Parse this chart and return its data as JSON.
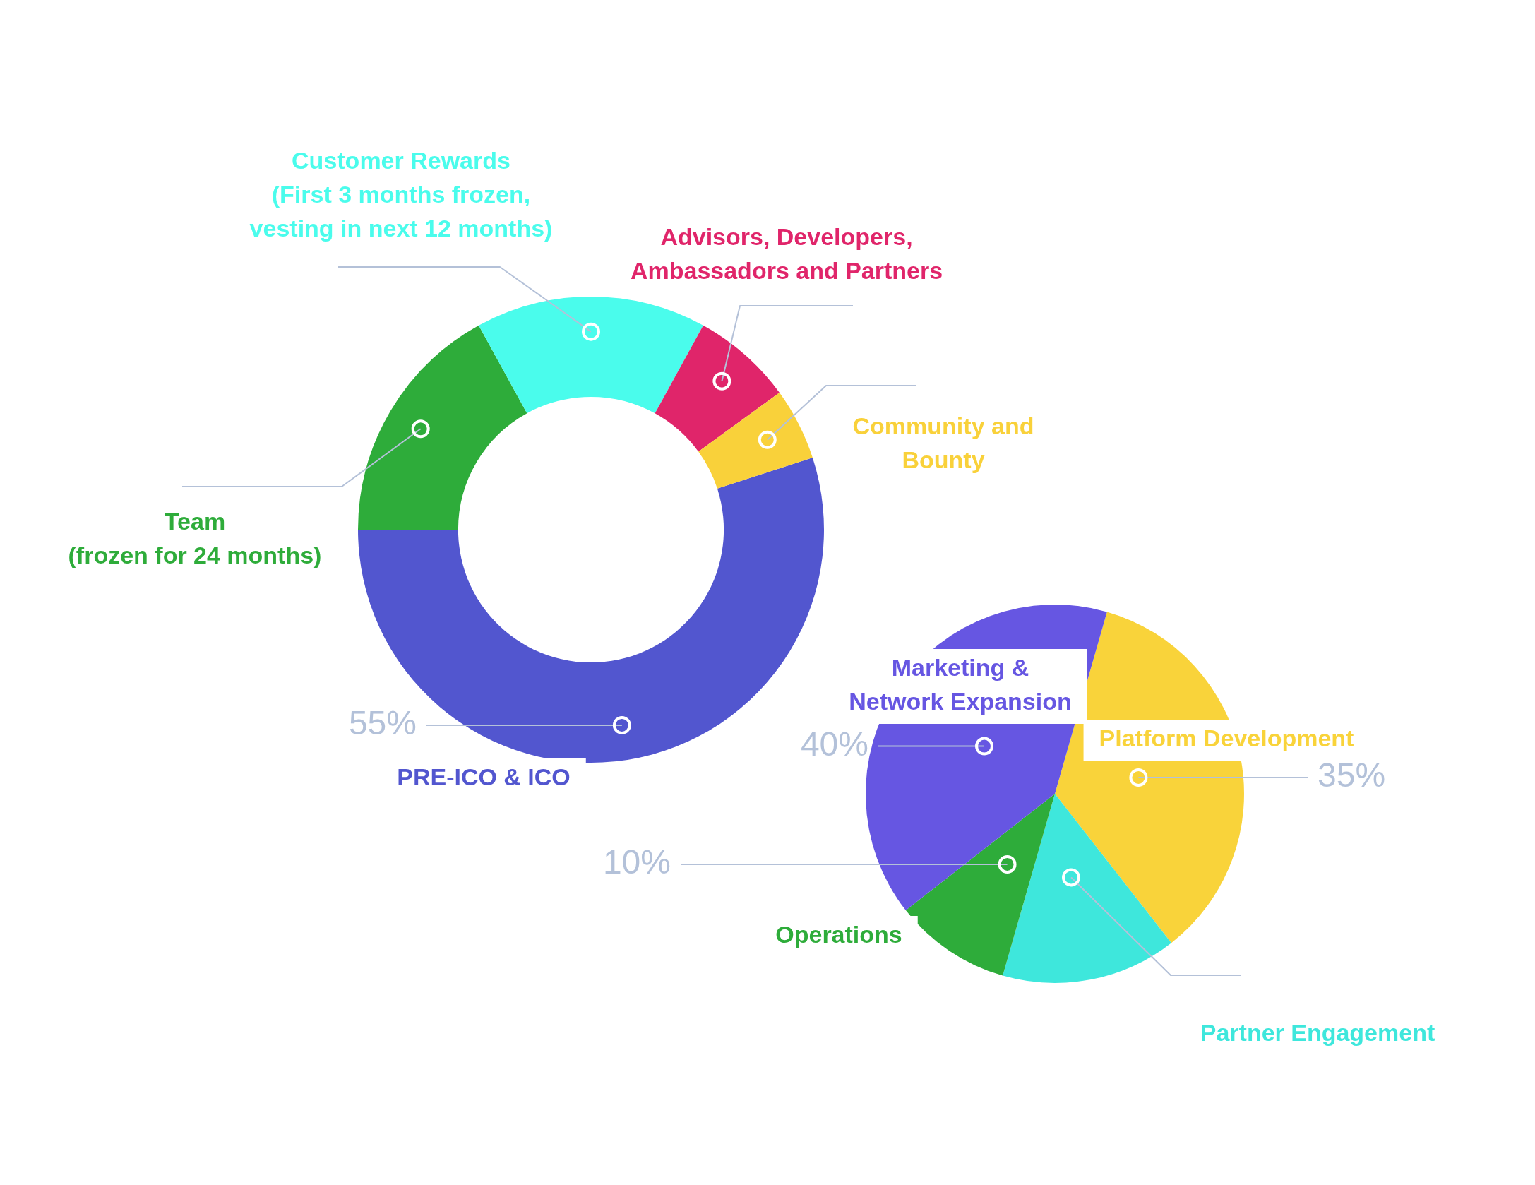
{
  "chart_data": [
    {
      "type": "donut",
      "categories": [
        "PRE-ICO & ICO",
        "Team\n(frozen for 24 months)",
        "Customer Rewards\n(First 3 months frozen,\nvesting in next 12 months)",
        "Advisors, Developers,\nAmbassadors and Partners",
        "Community and\nBounty"
      ],
      "values": [
        55,
        17,
        16,
        7,
        5
      ],
      "colors": [
        "#5256cf",
        "#2eac3a",
        "#4afcec",
        "#e0256a",
        "#f9d13a"
      ],
      "value_labels": [
        "55%",
        null,
        null,
        null,
        null
      ]
    },
    {
      "type": "pie",
      "categories": [
        "Platform Development",
        "Partner Engagement",
        "Operations",
        "Marketing &\nNetwork Expansion"
      ],
      "values": [
        35,
        15,
        10,
        40
      ],
      "colors": [
        "#f9d33a",
        "#3ee7dc",
        "#2eac3a",
        "#6656e2"
      ],
      "value_labels": [
        "35%",
        null,
        "10%",
        "40%"
      ]
    }
  ]
}
